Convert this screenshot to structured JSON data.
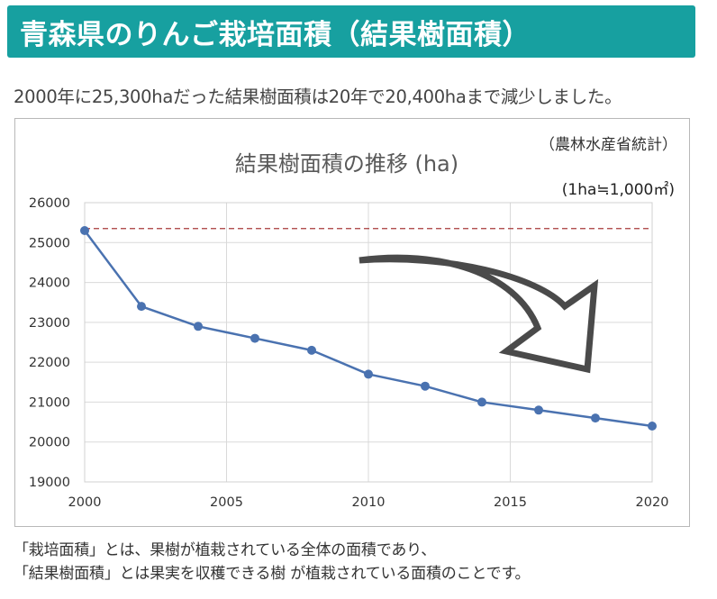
{
  "header": {
    "title": "青森県のりんご栽培面積（結果樹面積）"
  },
  "summary": "2000年に25,300haだった結果樹面積は20年で20,400haまで減少しました。",
  "chart_data": {
    "type": "line",
    "title": "結果樹面積の推移 (ha)",
    "source": "（農林水産省統計）",
    "unit_note": "(1ha≒1,000㎡)",
    "x": [
      2000,
      2002,
      2004,
      2006,
      2008,
      2010,
      2012,
      2014,
      2016,
      2018,
      2020
    ],
    "series": [
      {
        "values": [
          25300,
          23400,
          22900,
          22600,
          22300,
          21700,
          21400,
          21000,
          20800,
          20600,
          20400
        ]
      }
    ],
    "xticks": [
      2000,
      2005,
      2010,
      2015,
      2020
    ],
    "yticks": [
      19000,
      20000,
      21000,
      22000,
      23000,
      24000,
      25000,
      26000
    ],
    "xlim": [
      2000,
      2020
    ],
    "ylim": [
      19000,
      26000
    ],
    "reference_line": 25350,
    "grid": true,
    "line_color": "#4a72b0",
    "reference_color": "#a83a3a",
    "arrow_color": "#4a4a4a"
  },
  "footer": {
    "line1": "「栽培面積」とは、果樹が植栽されている全体の面積であり、",
    "line2": "「結果樹面積」とは果実を収穫できる樹 が植栽されている面積のことです。"
  }
}
